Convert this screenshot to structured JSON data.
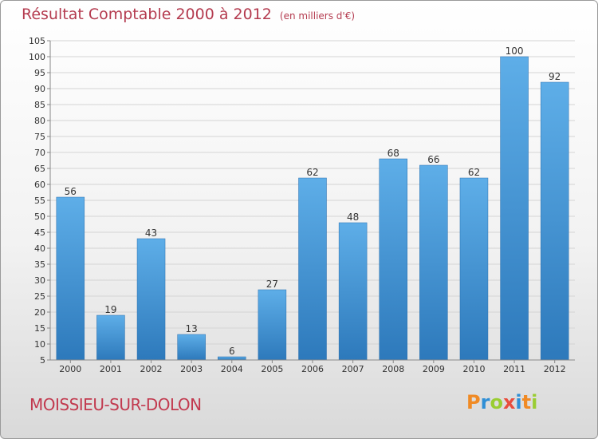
{
  "header": {
    "title": "Résultat Comptable 2000 à 2012",
    "unit_note": "(en milliers d'€)"
  },
  "footer": {
    "commune": "MOISSIEU-SUR-DOLON",
    "logo_text": "Proxiti",
    "logo_colors": [
      "#f08a24",
      "#2f8fd6",
      "#9acd32",
      "#e84d3d",
      "#2f8fd6",
      "#f08a24",
      "#9acd32"
    ]
  },
  "colors": {
    "title": "#b43b4f",
    "bar_top": "#5eaee8",
    "bar_bottom": "#2d79bb",
    "commune": "#c23a4f"
  },
  "chart_data": {
    "type": "bar",
    "title": "Résultat Comptable 2000 à 2012",
    "subtitle": "(en milliers d'€)",
    "categories": [
      "2000",
      "2001",
      "2002",
      "2003",
      "2004",
      "2005",
      "2006",
      "2007",
      "2008",
      "2009",
      "2010",
      "2011",
      "2012"
    ],
    "values": [
      56,
      19,
      43,
      13,
      6,
      27,
      62,
      48,
      68,
      66,
      62,
      100,
      92
    ],
    "data_labels": [
      "56",
      "19",
      "43",
      "13",
      "6",
      "27",
      "62",
      "48",
      "68",
      "66",
      "62",
      "100",
      "92"
    ],
    "xlabel": "",
    "ylabel": "",
    "ylim": [
      5,
      105
    ],
    "yticks": [
      5,
      10,
      15,
      20,
      25,
      30,
      35,
      40,
      45,
      50,
      55,
      60,
      65,
      70,
      75,
      80,
      85,
      90,
      95,
      100,
      105
    ],
    "grid": true
  }
}
